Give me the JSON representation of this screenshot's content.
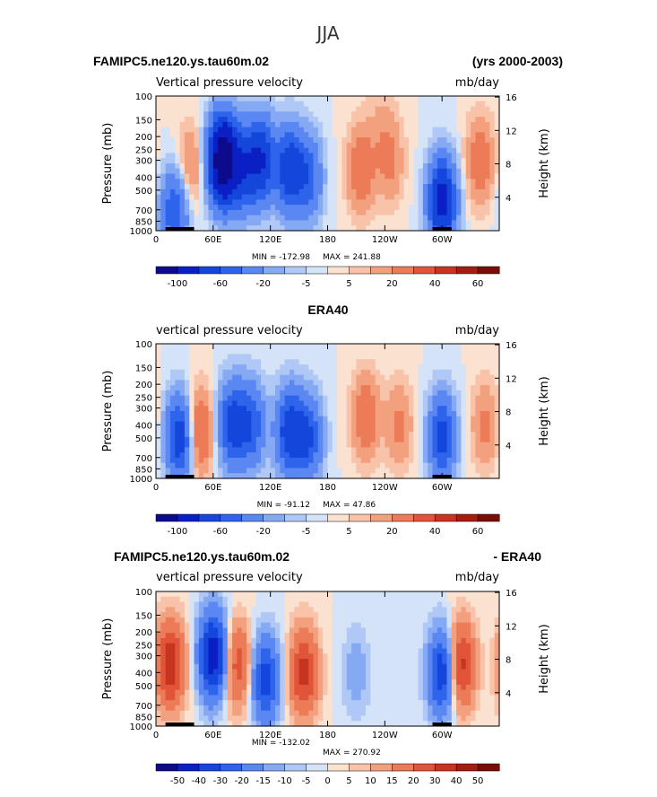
{
  "figure_title": "JJA",
  "colorbar_1_labels": [
    "-100",
    "-60",
    "-20",
    "-5",
    "5",
    "20",
    "40",
    "60"
  ],
  "colorbar_3_labels": [
    "-50",
    "-40",
    "-30",
    "-20",
    "-15",
    "-10",
    "-5",
    "0",
    "5",
    "10",
    "15",
    "20",
    "30",
    "40",
    "50"
  ],
  "colors": {
    "neg": [
      "#0d0a8c",
      "#0a1fc4",
      "#1446dc",
      "#2e64ec",
      "#5a87f2",
      "#86a9f4",
      "#b0c8f6",
      "#d5e3f8"
    ],
    "pos": [
      "#fbe1d0",
      "#f8c3a8",
      "#f3a07f",
      "#ec7b58",
      "#e0553a",
      "#c7341f",
      "#a41d12",
      "#7a0d08"
    ]
  },
  "chart_data": [
    {
      "type": "heatmap",
      "title_left": "FAMIPC5.ne120.ys.tau60m.02",
      "title_right": "(yrs 2000-2003)",
      "subtitle": "Vertical pressure velocity",
      "units": "mb/day",
      "ylabel": "Pressure (mb)",
      "ylabel_right": "Height (km)",
      "x_ticks": [
        "0",
        "60E",
        "120E",
        "180",
        "120W",
        "60W"
      ],
      "y_ticks": [
        "100",
        "150",
        "200",
        "250",
        "300",
        "400",
        "500",
        "700",
        "850",
        "1000"
      ],
      "y_ticks_right": [
        "16",
        "12",
        "8",
        "4"
      ],
      "min_label": "MIN = -172.98",
      "max_label": "MAX = 241.88",
      "blobs": [
        {
          "lon": 20,
          "p": 700,
          "val": -30
        },
        {
          "lon": 35,
          "p": 350,
          "val": 12
        },
        {
          "lon": 70,
          "p": 300,
          "val": -95
        },
        {
          "lon": 90,
          "p": 350,
          "val": -35
        },
        {
          "lon": 110,
          "p": 300,
          "val": -45
        },
        {
          "lon": 140,
          "p": 350,
          "val": -40
        },
        {
          "lon": 160,
          "p": 400,
          "val": -25
        },
        {
          "lon": 215,
          "p": 350,
          "val": 18
        },
        {
          "lon": 245,
          "p": 300,
          "val": 12
        },
        {
          "lon": 300,
          "p": 600,
          "val": -55
        },
        {
          "lon": 340,
          "p": 300,
          "val": 16
        },
        {
          "lon": 235,
          "p": 150,
          "val": 4
        }
      ]
    },
    {
      "type": "heatmap",
      "title_center": "ERA40",
      "subtitle": "vertical pressure velocity",
      "units": "mb/day",
      "ylabel": "Pressure (mb)",
      "ylabel_right": "Height (km)",
      "x_ticks": [
        "0",
        "60E",
        "120E",
        "180",
        "120W",
        "60W"
      ],
      "y_ticks": [
        "100",
        "150",
        "200",
        "250",
        "300",
        "400",
        "500",
        "700",
        "850",
        "1000"
      ],
      "y_ticks_right": [
        "16",
        "12",
        "8",
        "4"
      ],
      "min_label": "MIN = -91.12",
      "max_label": "MAX = 47.86",
      "blobs": [
        {
          "lon": 25,
          "p": 500,
          "val": -40
        },
        {
          "lon": 45,
          "p": 450,
          "val": 22
        },
        {
          "lon": 80,
          "p": 400,
          "val": -35
        },
        {
          "lon": 100,
          "p": 400,
          "val": -28
        },
        {
          "lon": 140,
          "p": 450,
          "val": -40
        },
        {
          "lon": 160,
          "p": 500,
          "val": -30
        },
        {
          "lon": 220,
          "p": 350,
          "val": 18
        },
        {
          "lon": 255,
          "p": 400,
          "val": 12
        },
        {
          "lon": 300,
          "p": 500,
          "val": -35
        },
        {
          "lon": 345,
          "p": 400,
          "val": 12
        }
      ]
    },
    {
      "type": "heatmap",
      "title_left": "FAMIPC5.ne120.ys.tau60m.02",
      "title_right": "- ERA40",
      "subtitle": "vertical pressure velocity",
      "units": "mb/day",
      "ylabel": "Pressure (mb)",
      "ylabel_right": "Height (km)",
      "x_ticks": [
        "0",
        "60E",
        "120E",
        "180",
        "120W",
        "60W"
      ],
      "y_ticks": [
        "100",
        "150",
        "200",
        "250",
        "300",
        "400",
        "500",
        "700",
        "850",
        "1000"
      ],
      "y_ticks_right": [
        "16",
        "12",
        "8",
        "4"
      ],
      "min_label": "MIN = -132.02",
      "max_label": "MAX = 270.92",
      "blobs": [
        {
          "lon": 15,
          "p": 350,
          "val": 40
        },
        {
          "lon": 60,
          "p": 300,
          "val": -55
        },
        {
          "lon": 85,
          "p": 350,
          "val": 25
        },
        {
          "lon": 115,
          "p": 450,
          "val": -35
        },
        {
          "lon": 155,
          "p": 400,
          "val": 35
        },
        {
          "lon": 210,
          "p": 400,
          "val": -8
        },
        {
          "lon": 300,
          "p": 400,
          "val": -40
        },
        {
          "lon": 320,
          "p": 350,
          "val": 35
        }
      ]
    }
  ]
}
